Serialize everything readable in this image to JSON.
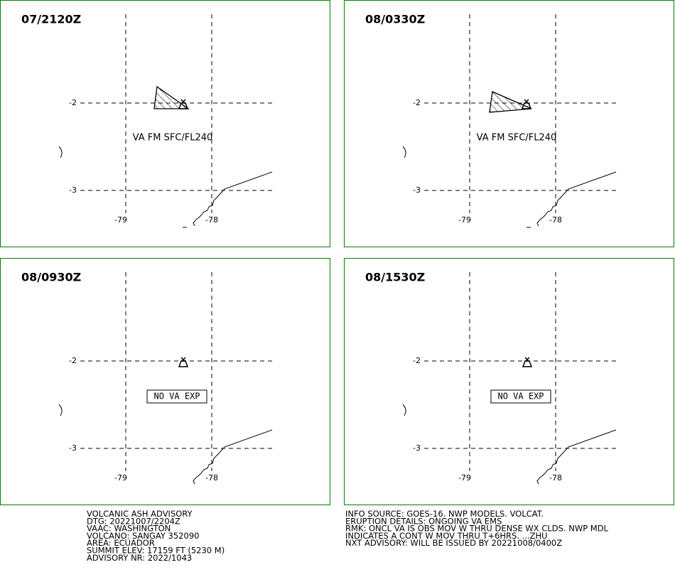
{
  "panels": [
    {
      "time": "07/2120Z",
      "ash_label": "VA FM SFC/FL240"
    },
    {
      "time": "08/0330Z",
      "ash_label": "VA FM SFC/FL240"
    },
    {
      "time": "08/0930Z",
      "no_ash_label": "NO VA EXP"
    },
    {
      "time": "08/1530Z",
      "no_ash_label": "NO VA EXP"
    }
  ],
  "lat_labels": [
    "-2",
    "-3"
  ],
  "lon_labels": [
    "-79",
    "-78"
  ],
  "advisory_left": [
    "VOLCANIC ASH ADVISORY",
    "DTG: 20221007/2204Z",
    "VAAC: WASHINGTON",
    "VOLCANO: SANGAY 352090",
    "AREA: ECUADOR",
    "SUMMIT ELEV: 17159 FT (5230 M)",
    "ADVISORY NR: 2022/1043"
  ],
  "advisory_right": [
    "INFO SOURCE: GOES-16. NWP MODELS. VOLCAT.",
    "ERUPTION DETAILS: ONGOING VA EMS",
    "RMK: ONCL VA IS OBS MOV W THRU DENSE WX CLDS. NWP MDL",
    "INDICATES A CONT W MOV THRU T+6HRS. ...ZHU",
    "NXT ADVISORY: WILL BE ISSUED BY 20221008/0400Z"
  ]
}
